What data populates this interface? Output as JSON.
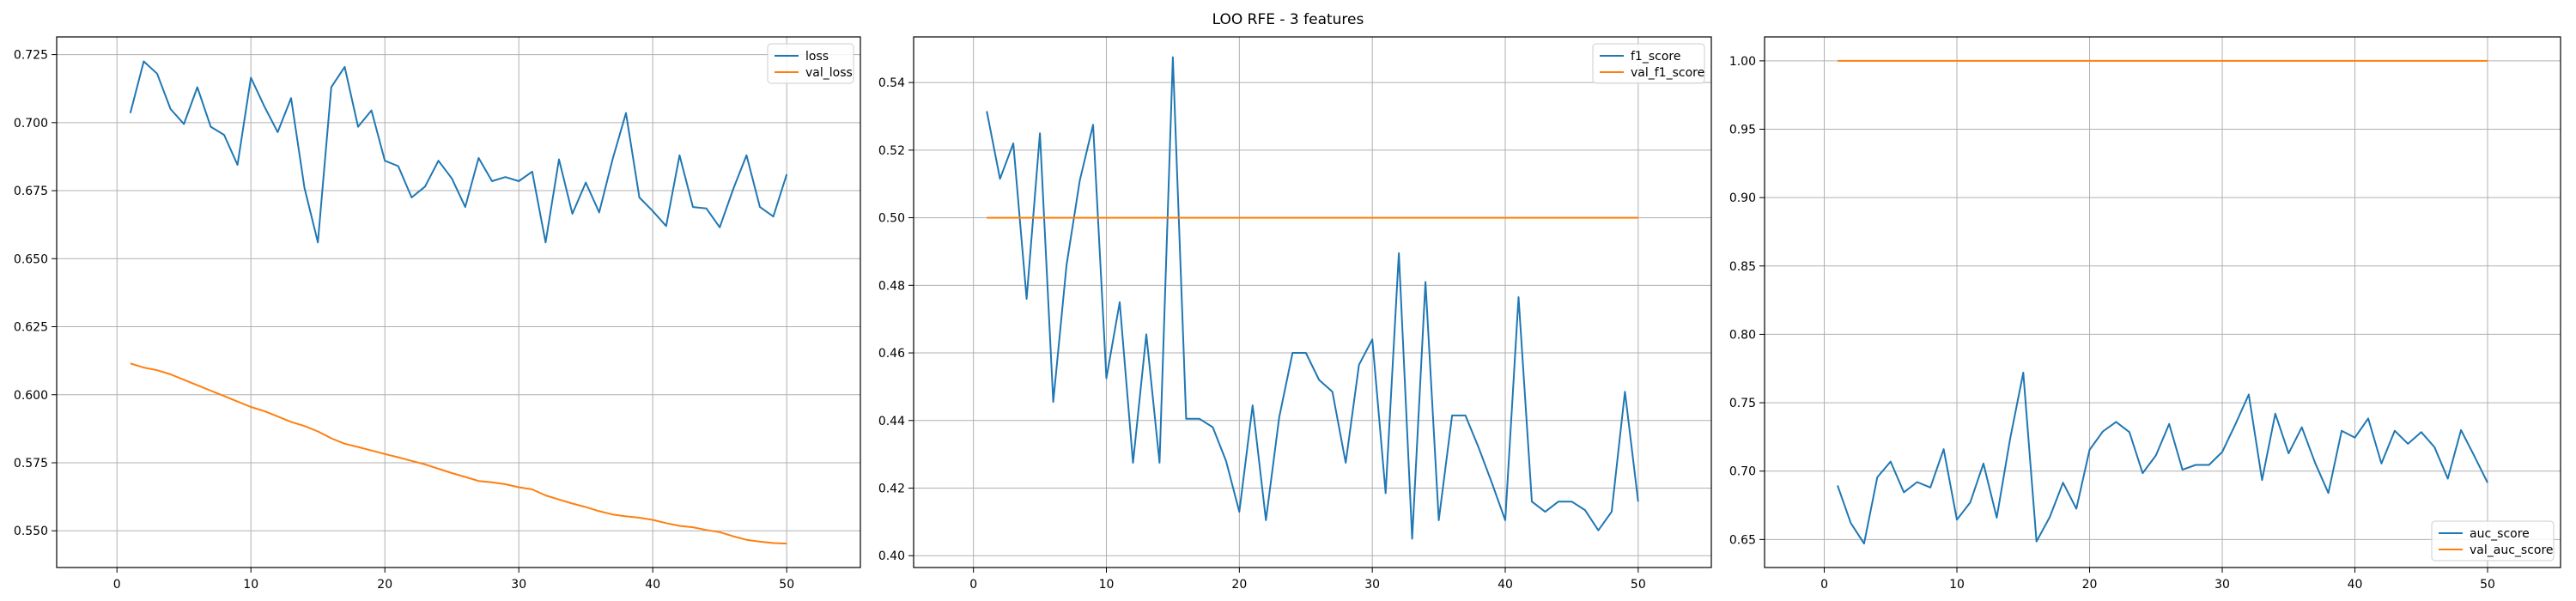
{
  "figure": {
    "title": "LOO RFE - 3 features"
  },
  "chart_data": [
    {
      "type": "line",
      "title": "",
      "xlabel": "",
      "ylabel": "",
      "xlim": [
        -4.5,
        55.5
      ],
      "ylim": [
        0.5365,
        0.7315
      ],
      "xticks": [
        0,
        10,
        20,
        30,
        40,
        50
      ],
      "yticks": [
        0.55,
        0.575,
        0.6,
        0.625,
        0.65,
        0.675,
        0.7,
        0.725
      ],
      "tick_decimals": 3,
      "grid": true,
      "legend_position": "top-right",
      "x": [
        1,
        2,
        3,
        4,
        5,
        6,
        7,
        8,
        9,
        10,
        11,
        12,
        13,
        14,
        15,
        16,
        17,
        18,
        19,
        20,
        21,
        22,
        23,
        24,
        25,
        26,
        27,
        28,
        29,
        30,
        31,
        32,
        33,
        34,
        35,
        36,
        37,
        38,
        39,
        40,
        41,
        42,
        43,
        44,
        45,
        46,
        47,
        48,
        49,
        50
      ],
      "series": [
        {
          "name": "loss",
          "color": "#1f77b4",
          "values": [
            0.7035,
            0.7225,
            0.718,
            0.705,
            0.6995,
            0.713,
            0.6985,
            0.6955,
            0.6845,
            0.7165,
            0.706,
            0.6965,
            0.709,
            0.676,
            0.656,
            0.713,
            0.7205,
            0.6985,
            0.7045,
            0.686,
            0.684,
            0.6725,
            0.6765,
            0.686,
            0.6795,
            0.669,
            0.687,
            0.6785,
            0.68,
            0.6785,
            0.682,
            0.656,
            0.6865,
            0.6665,
            0.678,
            0.667,
            0.6865,
            0.7035,
            0.6725,
            0.6675,
            0.662,
            0.688,
            0.669,
            0.6685,
            0.6615,
            0.6755,
            0.688,
            0.669,
            0.6655,
            0.681
          ]
        },
        {
          "name": "val_loss",
          "color": "#ff7f0e",
          "values": [
            0.6115,
            0.61,
            0.609,
            0.6075,
            0.6055,
            0.6035,
            0.6015,
            0.5995,
            0.5975,
            0.5955,
            0.594,
            0.592,
            0.59,
            0.5885,
            0.5865,
            0.584,
            0.582,
            0.5808,
            0.5795,
            0.5782,
            0.577,
            0.5757,
            0.5744,
            0.5728,
            0.5712,
            0.5698,
            0.5683,
            0.5678,
            0.5671,
            0.566,
            0.5652,
            0.563,
            0.5615,
            0.56,
            0.5587,
            0.5572,
            0.556,
            0.5553,
            0.5548,
            0.554,
            0.5528,
            0.5518,
            0.5513,
            0.5503,
            0.5495,
            0.548,
            0.5467,
            0.546,
            0.5455,
            0.5453
          ]
        }
      ]
    },
    {
      "type": "line",
      "title": "",
      "xlabel": "",
      "ylabel": "",
      "xlim": [
        -4.5,
        55.5
      ],
      "ylim": [
        0.3965,
        0.5535
      ],
      "xticks": [
        0,
        10,
        20,
        30,
        40,
        50
      ],
      "yticks": [
        0.4,
        0.42,
        0.44,
        0.46,
        0.48,
        0.5,
        0.52,
        0.54
      ],
      "tick_decimals": 2,
      "grid": true,
      "legend_position": "top-right",
      "x": [
        1,
        2,
        3,
        4,
        5,
        6,
        7,
        8,
        9,
        10,
        11,
        12,
        13,
        14,
        15,
        16,
        17,
        18,
        19,
        20,
        21,
        22,
        23,
        24,
        25,
        26,
        27,
        28,
        29,
        30,
        31,
        32,
        33,
        34,
        35,
        36,
        37,
        38,
        39,
        40,
        41,
        42,
        43,
        44,
        45,
        46,
        47,
        48,
        49,
        50
      ],
      "series": [
        {
          "name": "f1_score",
          "color": "#1f77b4",
          "values": [
            0.5315,
            0.5115,
            0.522,
            0.476,
            0.525,
            0.4455,
            0.486,
            0.511,
            0.5275,
            0.4525,
            0.475,
            0.4275,
            0.4655,
            0.4275,
            0.5475,
            0.4405,
            0.4405,
            0.438,
            0.428,
            0.413,
            0.4445,
            0.4105,
            0.441,
            0.46,
            0.46,
            0.452,
            0.4485,
            0.4275,
            0.4565,
            0.464,
            0.4185,
            0.4895,
            0.405,
            0.481,
            0.4105,
            0.4415,
            0.4415,
            0.432,
            0.4215,
            0.4105,
            0.4765,
            0.416,
            0.413,
            0.416,
            0.416,
            0.4135,
            0.4075,
            0.413,
            0.4485,
            0.416
          ]
        },
        {
          "name": "val_f1_score",
          "color": "#ff7f0e",
          "values": [
            0.5,
            0.5,
            0.5,
            0.5,
            0.5,
            0.5,
            0.5,
            0.5,
            0.5,
            0.5,
            0.5,
            0.5,
            0.5,
            0.5,
            0.5,
            0.5,
            0.5,
            0.5,
            0.5,
            0.5,
            0.5,
            0.5,
            0.5,
            0.5,
            0.5,
            0.5,
            0.5,
            0.5,
            0.5,
            0.5,
            0.5,
            0.5,
            0.5,
            0.5,
            0.5,
            0.5,
            0.5,
            0.5,
            0.5,
            0.5,
            0.5,
            0.5,
            0.5,
            0.5,
            0.5,
            0.5,
            0.5,
            0.5,
            0.5,
            0.5
          ]
        }
      ]
    },
    {
      "type": "line",
      "title": "",
      "xlabel": "",
      "ylabel": "",
      "xlim": [
        -4.5,
        55.5
      ],
      "ylim": [
        0.6295,
        1.0175
      ],
      "xticks": [
        0,
        10,
        20,
        30,
        40,
        50
      ],
      "yticks": [
        0.65,
        0.7,
        0.75,
        0.8,
        0.85,
        0.9,
        0.95,
        1.0
      ],
      "tick_decimals": 2,
      "grid": true,
      "legend_position": "bottom-right",
      "x": [
        1,
        2,
        3,
        4,
        5,
        6,
        7,
        8,
        9,
        10,
        11,
        12,
        13,
        14,
        15,
        16,
        17,
        18,
        19,
        20,
        21,
        22,
        23,
        24,
        25,
        26,
        27,
        28,
        29,
        30,
        31,
        32,
        33,
        34,
        35,
        36,
        37,
        38,
        39,
        40,
        41,
        42,
        43,
        44,
        45,
        46,
        47,
        48,
        49,
        50
      ],
      "series": [
        {
          "name": "auc_score",
          "color": "#1f77b4",
          "values": [
            0.6895,
            0.662,
            0.647,
            0.6955,
            0.707,
            0.6845,
            0.692,
            0.688,
            0.716,
            0.6645,
            0.677,
            0.7055,
            0.666,
            0.723,
            0.772,
            0.6485,
            0.6665,
            0.6915,
            0.6725,
            0.7155,
            0.729,
            0.736,
            0.7285,
            0.6985,
            0.7115,
            0.7345,
            0.701,
            0.7045,
            0.7045,
            0.714,
            0.7345,
            0.756,
            0.6935,
            0.742,
            0.713,
            0.732,
            0.706,
            0.684,
            0.7295,
            0.7245,
            0.7385,
            0.7055,
            0.7295,
            0.72,
            0.7285,
            0.7175,
            0.6945,
            0.73,
            0.711,
            0.6915
          ]
        },
        {
          "name": "val_auc_score",
          "color": "#ff7f0e",
          "values": [
            1.0,
            1.0,
            1.0,
            1.0,
            1.0,
            1.0,
            1.0,
            1.0,
            1.0,
            1.0,
            1.0,
            1.0,
            1.0,
            1.0,
            1.0,
            1.0,
            1.0,
            1.0,
            1.0,
            1.0,
            1.0,
            1.0,
            1.0,
            1.0,
            1.0,
            1.0,
            1.0,
            1.0,
            1.0,
            1.0,
            1.0,
            1.0,
            1.0,
            1.0,
            1.0,
            1.0,
            1.0,
            1.0,
            1.0,
            1.0,
            1.0,
            1.0,
            1.0,
            1.0,
            1.0,
            1.0,
            1.0,
            1.0,
            1.0,
            1.0
          ]
        }
      ]
    }
  ]
}
